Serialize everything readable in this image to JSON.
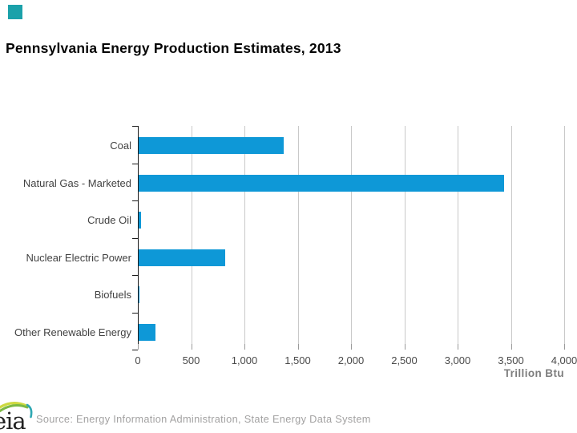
{
  "accent_color": "#1ba1aa",
  "title": "Pennsylvania Energy Production Estimates, 2013",
  "chart_data": {
    "type": "bar",
    "orientation": "horizontal",
    "title": "Pennsylvania Energy Production Estimates, 2013",
    "categories": [
      "Coal",
      "Natural Gas - Marketed",
      "Crude Oil",
      "Nuclear Electric Power",
      "Biofuels",
      "Other Renewable Energy"
    ],
    "values": [
      1360,
      3430,
      25,
      810,
      10,
      160
    ],
    "xlabel": "Trillion Btu",
    "xlim": [
      0,
      4000
    ],
    "xticks": [
      0,
      500,
      1000,
      1500,
      2000,
      2500,
      3000,
      3500,
      4000
    ],
    "xtick_labels": [
      "0",
      "500",
      "1,000",
      "1,500",
      "2,000",
      "2,500",
      "3,000",
      "3,500",
      "4,000"
    ],
    "bar_color": "#0e98d7",
    "grid": "vertical-gridlines-light-gray",
    "legend": "none"
  },
  "footer": {
    "logo_text": "eia",
    "source": "Source: Energy Information Administration, State Energy Data System"
  }
}
